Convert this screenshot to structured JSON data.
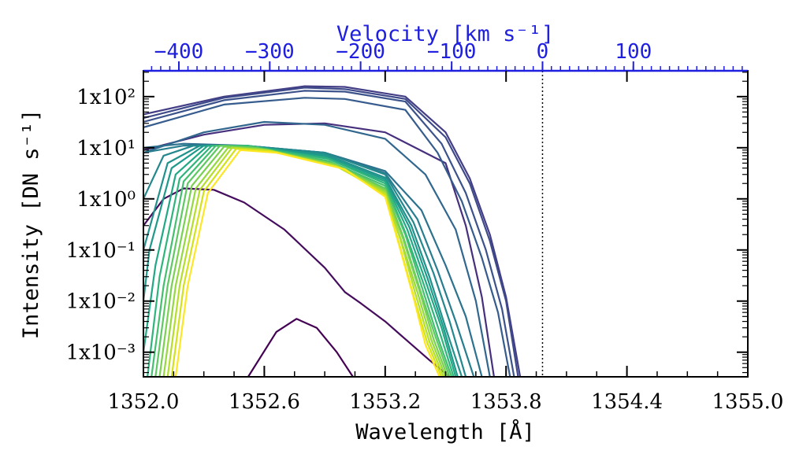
{
  "chart_data": {
    "type": "line",
    "xlabel": "Wavelength [Å]",
    "ylabel": "Intensity [DN s⁻¹]",
    "top_axis_label": "Velocity [km s⁻¹]",
    "xlim": [
      1352.0,
      1355.0
    ],
    "ylim": [
      0.00033,
      320
    ],
    "y_scale": "log",
    "x_ticks": [
      {
        "value": 1352.0,
        "label": "1352.0"
      },
      {
        "value": 1352.6,
        "label": "1352.6"
      },
      {
        "value": 1353.2,
        "label": "1353.2"
      },
      {
        "value": 1353.8,
        "label": "1353.8"
      },
      {
        "value": 1354.4,
        "label": "1354.4"
      },
      {
        "value": 1355.0,
        "label": "1355.0"
      }
    ],
    "y_ticks": [
      {
        "value": 100,
        "label": "1x10²"
      },
      {
        "value": 10,
        "label": "1x10¹"
      },
      {
        "value": 1,
        "label": "1x10⁰"
      },
      {
        "value": 0.1,
        "label": "1x10⁻¹"
      },
      {
        "value": 0.01,
        "label": "1x10⁻²"
      },
      {
        "value": 0.001,
        "label": "1x10⁻³"
      }
    ],
    "top_ticks": [
      {
        "wavelength": 1352.176,
        "label": "−400"
      },
      {
        "wavelength": 1352.627,
        "label": "−300"
      },
      {
        "wavelength": 1353.078,
        "label": "−200"
      },
      {
        "wavelength": 1353.53,
        "label": "−100"
      },
      {
        "wavelength": 1353.981,
        "label": "0"
      },
      {
        "wavelength": 1354.432,
        "label": "100"
      }
    ],
    "rest_wavelength": 1353.981,
    "reference_line": {
      "x": 1353.981,
      "style": "dotted"
    },
    "colors": {
      "top_axis": "#1f1fe0",
      "palette": [
        "#440154",
        "#472d7b",
        "#3b528b",
        "#2c728e",
        "#21918c",
        "#28ae80",
        "#5ec962",
        "#addc30",
        "#fde725"
      ]
    },
    "series": [
      {
        "color": "#440154",
        "x": [
          1352.52,
          1352.66,
          1352.76,
          1352.86,
          1352.96,
          1353.04
        ],
        "y": [
          0.00033,
          0.0025,
          0.0045,
          0.003,
          0.001,
          0.00033
        ]
      },
      {
        "color": "#450c5e",
        "x": [
          1352.0,
          1352.1,
          1352.2,
          1352.35,
          1352.5,
          1352.7,
          1352.9,
          1353.0,
          1353.08,
          1353.2,
          1353.3,
          1353.42,
          1353.52
        ],
        "y": [
          0.3,
          1.0,
          1.6,
          1.5,
          0.85,
          0.25,
          0.045,
          0.015,
          0.009,
          0.004,
          0.0018,
          0.0007,
          0.00033
        ]
      },
      {
        "color": "#46307e",
        "x": [
          1352.0,
          1352.3,
          1352.6,
          1352.9,
          1353.2,
          1353.5,
          1353.6,
          1353.68,
          1353.74
        ],
        "y": [
          9,
          18,
          28,
          30,
          20,
          5,
          0.3,
          0.012,
          0.00033
        ]
      },
      {
        "color": "#433e85",
        "x": [
          1352.0,
          1352.4,
          1352.8,
          1353.0,
          1353.3,
          1353.5,
          1353.62,
          1353.72,
          1353.8,
          1353.87
        ],
        "y": [
          45,
          100,
          160,
          155,
          100,
          20,
          2.5,
          0.2,
          0.012,
          0.00033
        ]
      },
      {
        "color": "#3e4a89",
        "x": [
          1352.0,
          1352.4,
          1352.8,
          1353.0,
          1353.3,
          1353.5,
          1353.62,
          1353.72,
          1353.8,
          1353.86
        ],
        "y": [
          38,
          95,
          150,
          140,
          90,
          16,
          2.0,
          0.15,
          0.01,
          0.00033
        ]
      },
      {
        "color": "#3b528b",
        "x": [
          1352.0,
          1352.4,
          1352.8,
          1353.0,
          1353.3,
          1353.48,
          1353.6,
          1353.7,
          1353.78,
          1353.84
        ],
        "y": [
          32,
          85,
          130,
          125,
          80,
          12,
          1.3,
          0.1,
          0.007,
          0.00033
        ]
      },
      {
        "color": "#365c8d",
        "x": [
          1352.0,
          1352.4,
          1352.8,
          1353.0,
          1353.3,
          1353.46,
          1353.58,
          1353.68,
          1353.76,
          1353.82
        ],
        "y": [
          25,
          70,
          95,
          90,
          55,
          8,
          0.9,
          0.07,
          0.006,
          0.00033
        ]
      },
      {
        "color": "#31678e",
        "x": [
          1352.0,
          1352.3,
          1352.6,
          1352.9,
          1353.2,
          1353.4,
          1353.55,
          1353.65,
          1353.72
        ],
        "y": [
          8,
          20,
          32,
          28,
          15,
          3,
          0.25,
          0.01,
          0.00033
        ]
      },
      {
        "color": "#2c728e",
        "x": [
          1352.0,
          1352.2,
          1352.5,
          1352.9,
          1353.2,
          1353.38,
          1353.5,
          1353.6,
          1353.68
        ],
        "y": [
          10,
          12,
          11,
          8,
          3.5,
          0.6,
          0.05,
          0.005,
          0.00033
        ]
      },
      {
        "color": "#287d8e",
        "x": [
          1352.0,
          1352.2,
          1352.5,
          1352.9,
          1353.2,
          1353.36,
          1353.46,
          1353.55,
          1353.64
        ],
        "y": [
          8,
          11,
          11,
          8,
          3.2,
          0.4,
          0.04,
          0.004,
          0.00033
        ]
      },
      {
        "color": "#24878e",
        "x": [
          1352.0,
          1352.1,
          1352.25,
          1352.5,
          1352.9,
          1353.2,
          1353.34,
          1353.44,
          1353.52,
          1353.6
        ],
        "y": [
          1.0,
          7,
          11,
          11,
          8,
          3,
          0.35,
          0.035,
          0.004,
          0.00033
        ]
      },
      {
        "color": "#21918c",
        "x": [
          1352.0,
          1352.12,
          1352.28,
          1352.5,
          1352.9,
          1353.2,
          1353.33,
          1353.42,
          1353.5,
          1353.58
        ],
        "y": [
          0.1,
          5,
          11,
          11,
          7.5,
          2.6,
          0.3,
          0.03,
          0.003,
          0.00033
        ]
      },
      {
        "color": "#1f9a8a",
        "x": [
          1352.0,
          1352.03,
          1352.14,
          1352.3,
          1352.5,
          1352.9,
          1353.2,
          1353.32,
          1353.41,
          1353.49,
          1353.56
        ],
        "y": [
          0.01,
          0.1,
          4,
          11,
          11,
          7,
          2.4,
          0.28,
          0.028,
          0.003,
          0.00033
        ]
      },
      {
        "color": "#22a884",
        "x": [
          1352.0,
          1352.06,
          1352.16,
          1352.32,
          1352.5,
          1352.9,
          1353.2,
          1353.31,
          1353.4,
          1353.48,
          1353.55
        ],
        "y": [
          0.001,
          0.05,
          3,
          11,
          11,
          6.5,
          2.2,
          0.25,
          0.025,
          0.003,
          0.00033
        ]
      },
      {
        "color": "#2fb47c",
        "x": [
          1352.02,
          1352.08,
          1352.18,
          1352.34,
          1352.52,
          1352.92,
          1353.2,
          1353.3,
          1353.39,
          1353.47,
          1353.54
        ],
        "y": [
          0.00033,
          0.03,
          2.5,
          11,
          11,
          6,
          2.0,
          0.22,
          0.022,
          0.0025,
          0.00033
        ]
      },
      {
        "color": "#44bf70",
        "x": [
          1352.04,
          1352.1,
          1352.2,
          1352.36,
          1352.54,
          1352.92,
          1353.2,
          1353.3,
          1353.38,
          1353.46,
          1353.53
        ],
        "y": [
          0.00033,
          0.02,
          2.2,
          11,
          10.5,
          5.5,
          1.8,
          0.2,
          0.02,
          0.002,
          0.00033
        ]
      },
      {
        "color": "#5ec962",
        "x": [
          1352.06,
          1352.12,
          1352.22,
          1352.38,
          1352.56,
          1352.94,
          1353.2,
          1353.29,
          1353.37,
          1353.45,
          1353.52
        ],
        "y": [
          0.00033,
          0.02,
          2.0,
          11,
          10,
          5,
          1.6,
          0.18,
          0.018,
          0.002,
          0.00033
        ]
      },
      {
        "color": "#7ad151",
        "x": [
          1352.08,
          1352.14,
          1352.24,
          1352.4,
          1352.58,
          1352.94,
          1353.2,
          1353.29,
          1353.37,
          1353.44,
          1353.51
        ],
        "y": [
          0.00033,
          0.02,
          1.8,
          10.5,
          9.5,
          4.8,
          1.5,
          0.16,
          0.016,
          0.0018,
          0.00033
        ]
      },
      {
        "color": "#95d840",
        "x": [
          1352.1,
          1352.16,
          1352.26,
          1352.42,
          1352.6,
          1352.96,
          1353.2,
          1353.28,
          1353.36,
          1353.43,
          1353.5
        ],
        "y": [
          0.00033,
          0.02,
          1.6,
          10,
          9,
          4.5,
          1.4,
          0.15,
          0.015,
          0.0017,
          0.00033
        ]
      },
      {
        "color": "#b5de2b",
        "x": [
          1352.12,
          1352.18,
          1352.28,
          1352.44,
          1352.62,
          1352.96,
          1353.2,
          1353.28,
          1353.35,
          1353.42,
          1353.49
        ],
        "y": [
          0.00033,
          0.02,
          1.5,
          10,
          9,
          4.3,
          1.3,
          0.14,
          0.014,
          0.0016,
          0.00033
        ]
      },
      {
        "color": "#d2e21b",
        "x": [
          1352.14,
          1352.2,
          1352.3,
          1352.46,
          1352.64,
          1352.98,
          1353.2,
          1353.27,
          1353.34,
          1353.41,
          1353.48
        ],
        "y": [
          0.00033,
          0.02,
          1.4,
          9.5,
          8.5,
          4,
          1.2,
          0.13,
          0.013,
          0.0015,
          0.00033
        ]
      },
      {
        "color": "#fde725",
        "x": [
          1352.16,
          1352.22,
          1352.32,
          1352.48,
          1352.66,
          1353.0,
          1353.2,
          1353.27,
          1353.34,
          1353.4,
          1353.47
        ],
        "y": [
          0.00033,
          0.02,
          1.3,
          9,
          8,
          3.8,
          1.1,
          0.12,
          0.012,
          0.0014,
          0.00033
        ]
      }
    ]
  }
}
